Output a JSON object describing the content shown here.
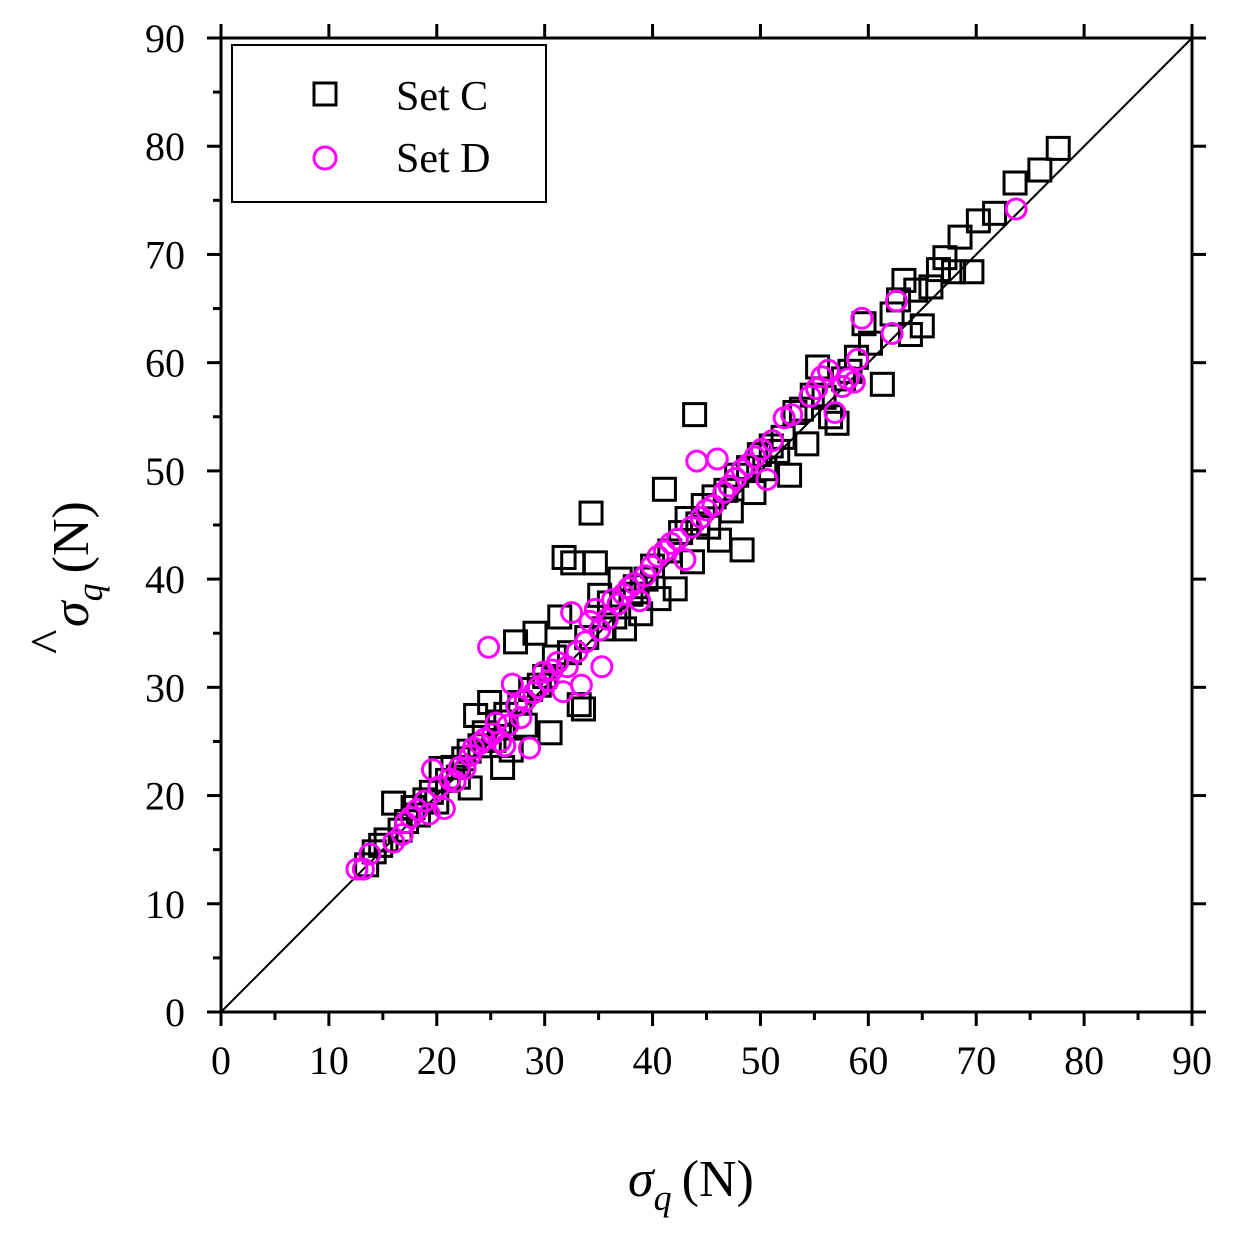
{
  "chart_data": {
    "type": "scatter",
    "xlabel": {
      "symbol": "σ",
      "subscript": "q",
      "unit": "(N)"
    },
    "ylabel": {
      "hat": "^",
      "symbol": "σ",
      "subscript": "q",
      "unit": "(N)"
    },
    "xlim": [
      0,
      90
    ],
    "ylim": [
      0,
      90
    ],
    "xticks": [
      "0",
      "10",
      "20",
      "30",
      "40",
      "50",
      "60",
      "70",
      "80",
      "90"
    ],
    "yticks": [
      "0",
      "10",
      "20",
      "30",
      "40",
      "50",
      "60",
      "70",
      "80",
      "90"
    ],
    "grid": false,
    "legend": {
      "position": "top-left",
      "entries": [
        "Set C",
        "Set D"
      ]
    },
    "reference_line": {
      "from": [
        0,
        0
      ],
      "to": [
        90,
        90
      ]
    },
    "series": [
      {
        "name": "Set C",
        "marker": "square",
        "color": "#000000",
        "points": [
          [
            13.5,
            13.6
          ],
          [
            14.2,
            14.8
          ],
          [
            14.8,
            15.4
          ],
          [
            15.3,
            15.9
          ],
          [
            16.0,
            19.3
          ],
          [
            16.6,
            16.8
          ],
          [
            17.2,
            17.6
          ],
          [
            17.8,
            18.9
          ],
          [
            18.3,
            18.2
          ],
          [
            18.9,
            19.6
          ],
          [
            19.5,
            20.3
          ],
          [
            20.0,
            19.4
          ],
          [
            20.4,
            22.5
          ],
          [
            21.0,
            21.4
          ],
          [
            21.5,
            22.6
          ],
          [
            22.0,
            21.7
          ],
          [
            22.5,
            23.4
          ],
          [
            23.1,
            20.7
          ],
          [
            23.0,
            24.1
          ],
          [
            23.6,
            27.4
          ],
          [
            24.0,
            24.6
          ],
          [
            24.4,
            25.8
          ],
          [
            24.9,
            28.6
          ],
          [
            25.3,
            25.1
          ],
          [
            25.8,
            26.8
          ],
          [
            26.1,
            22.6
          ],
          [
            26.4,
            27.5
          ],
          [
            26.9,
            24.2
          ],
          [
            27.3,
            34.2
          ],
          [
            27.7,
            28.6
          ],
          [
            28.2,
            26.5
          ],
          [
            28.7,
            29.8
          ],
          [
            29.1,
            35.0
          ],
          [
            29.5,
            30.2
          ],
          [
            30.0,
            31.0
          ],
          [
            30.5,
            25.8
          ],
          [
            30.9,
            32.8
          ],
          [
            31.4,
            36.5
          ],
          [
            31.8,
            42.0
          ],
          [
            32.3,
            33.2
          ],
          [
            32.6,
            41.5
          ],
          [
            33.2,
            28.4
          ],
          [
            33.6,
            28.0
          ],
          [
            33.9,
            34.6
          ],
          [
            34.3,
            46.1
          ],
          [
            34.7,
            41.5
          ],
          [
            35.1,
            38.5
          ],
          [
            35.5,
            35.4
          ],
          [
            36.0,
            37.8
          ],
          [
            36.5,
            36.5
          ],
          [
            37.0,
            40.0
          ],
          [
            37.4,
            35.4
          ],
          [
            38.0,
            38.6
          ],
          [
            38.4,
            39.3
          ],
          [
            38.9,
            36.8
          ],
          [
            39.4,
            40.0
          ],
          [
            40.0,
            41.2
          ],
          [
            40.6,
            38.2
          ],
          [
            41.1,
            48.3
          ],
          [
            41.6,
            42.6
          ],
          [
            42.1,
            39.1
          ],
          [
            42.6,
            44.3
          ],
          [
            43.2,
            45.6
          ],
          [
            43.7,
            41.6
          ],
          [
            44.2,
            45.1
          ],
          [
            43.9,
            55.2
          ],
          [
            44.7,
            46.8
          ],
          [
            45.2,
            44.8
          ],
          [
            45.7,
            47.6
          ],
          [
            46.2,
            43.6
          ],
          [
            46.8,
            48.2
          ],
          [
            47.3,
            46.3
          ],
          [
            47.8,
            49.6
          ],
          [
            48.3,
            42.7
          ],
          [
            48.9,
            50.3
          ],
          [
            49.4,
            48.0
          ],
          [
            49.9,
            51.5
          ],
          [
            50.4,
            50.2
          ],
          [
            51.0,
            52.3
          ],
          [
            51.6,
            51.8
          ],
          [
            52.1,
            53.1
          ],
          [
            52.7,
            49.6
          ],
          [
            53.2,
            55.4
          ],
          [
            53.8,
            55.7
          ],
          [
            54.3,
            52.5
          ],
          [
            54.8,
            57.0
          ],
          [
            55.3,
            59.6
          ],
          [
            55.9,
            56.8
          ],
          [
            56.5,
            55.0
          ],
          [
            57.1,
            54.4
          ],
          [
            57.7,
            58.5
          ],
          [
            58.3,
            59.2
          ],
          [
            58.9,
            60.5
          ],
          [
            59.6,
            63.6
          ],
          [
            60.2,
            61.8
          ],
          [
            61.3,
            58.0
          ],
          [
            62.2,
            64.5
          ],
          [
            62.8,
            65.8
          ],
          [
            63.3,
            67.6
          ],
          [
            63.9,
            62.6
          ],
          [
            64.4,
            66.7
          ],
          [
            65.0,
            63.4
          ],
          [
            65.8,
            67.0
          ],
          [
            66.5,
            68.6
          ],
          [
            67.1,
            69.7
          ],
          [
            67.9,
            68.4
          ],
          [
            68.5,
            71.6
          ],
          [
            69.6,
            68.4
          ],
          [
            70.2,
            73.1
          ],
          [
            71.7,
            73.8
          ],
          [
            73.6,
            76.6
          ],
          [
            75.9,
            77.8
          ],
          [
            77.6,
            79.8
          ]
        ]
      },
      {
        "name": "Set D",
        "marker": "circle",
        "color": "#ff00ff",
        "points": [
          [
            12.6,
            13.2
          ],
          [
            13.2,
            13.2
          ],
          [
            13.8,
            14.6
          ],
          [
            16.0,
            15.7
          ],
          [
            16.8,
            16.4
          ],
          [
            17.1,
            17.5
          ],
          [
            17.6,
            18.0
          ],
          [
            18.2,
            18.7
          ],
          [
            18.9,
            19.5
          ],
          [
            19.3,
            18.3
          ],
          [
            19.6,
            22.4
          ],
          [
            20.2,
            20.8
          ],
          [
            20.7,
            18.8
          ],
          [
            21.2,
            21.5
          ],
          [
            21.7,
            21.3
          ],
          [
            22.1,
            22.6
          ],
          [
            22.6,
            22.5
          ],
          [
            23.1,
            23.7
          ],
          [
            23.4,
            24.4
          ],
          [
            24.0,
            24.8
          ],
          [
            24.4,
            25.2
          ],
          [
            24.8,
            33.7
          ],
          [
            25.2,
            25.7
          ],
          [
            25.5,
            26.7
          ],
          [
            25.9,
            25.0
          ],
          [
            26.3,
            24.6
          ],
          [
            26.6,
            26.5
          ],
          [
            27.0,
            30.3
          ],
          [
            27.4,
            28.3
          ],
          [
            27.8,
            27.2
          ],
          [
            28.2,
            28.8
          ],
          [
            28.6,
            24.4
          ],
          [
            29.0,
            29.5
          ],
          [
            29.4,
            30.0
          ],
          [
            29.9,
            31.4
          ],
          [
            30.3,
            30.6
          ],
          [
            30.7,
            31.6
          ],
          [
            31.2,
            32.3
          ],
          [
            31.7,
            29.6
          ],
          [
            32.1,
            31.9
          ],
          [
            32.5,
            36.9
          ],
          [
            33.0,
            33.3
          ],
          [
            33.4,
            30.2
          ],
          [
            33.8,
            34.2
          ],
          [
            34.2,
            36.1
          ],
          [
            34.7,
            37.2
          ],
          [
            35.1,
            35.3
          ],
          [
            35.3,
            31.9
          ],
          [
            35.8,
            36.3
          ],
          [
            36.3,
            38.1
          ],
          [
            36.8,
            37.7
          ],
          [
            37.3,
            38.6
          ],
          [
            37.8,
            39.2
          ],
          [
            38.3,
            39.6
          ],
          [
            38.8,
            38.0
          ],
          [
            39.3,
            40.3
          ],
          [
            39.9,
            41.2
          ],
          [
            40.5,
            42.1
          ],
          [
            41.1,
            42.6
          ],
          [
            41.7,
            43.3
          ],
          [
            42.3,
            43.7
          ],
          [
            43.0,
            41.8
          ],
          [
            43.6,
            44.8
          ],
          [
            44.1,
            50.9
          ],
          [
            44.5,
            45.7
          ],
          [
            45.0,
            46.4
          ],
          [
            45.6,
            46.8
          ],
          [
            46.0,
            51.1
          ],
          [
            46.6,
            48.0
          ],
          [
            47.1,
            48.6
          ],
          [
            47.7,
            49.3
          ],
          [
            48.3,
            50.1
          ],
          [
            48.9,
            50.6
          ],
          [
            49.5,
            51.3
          ],
          [
            50.1,
            52.0
          ],
          [
            50.6,
            49.2
          ],
          [
            51.1,
            52.8
          ],
          [
            52.2,
            54.9
          ],
          [
            52.9,
            55.2
          ],
          [
            54.6,
            56.9
          ],
          [
            55.2,
            57.6
          ],
          [
            55.7,
            58.7
          ],
          [
            56.3,
            59.3
          ],
          [
            56.9,
            55.4
          ],
          [
            57.6,
            57.8
          ],
          [
            58.1,
            58.5
          ],
          [
            58.7,
            58.2
          ],
          [
            59.0,
            60.3
          ],
          [
            59.4,
            64.1
          ],
          [
            62.2,
            62.7
          ],
          [
            62.6,
            65.7
          ],
          [
            73.7,
            74.2
          ]
        ]
      }
    ]
  }
}
